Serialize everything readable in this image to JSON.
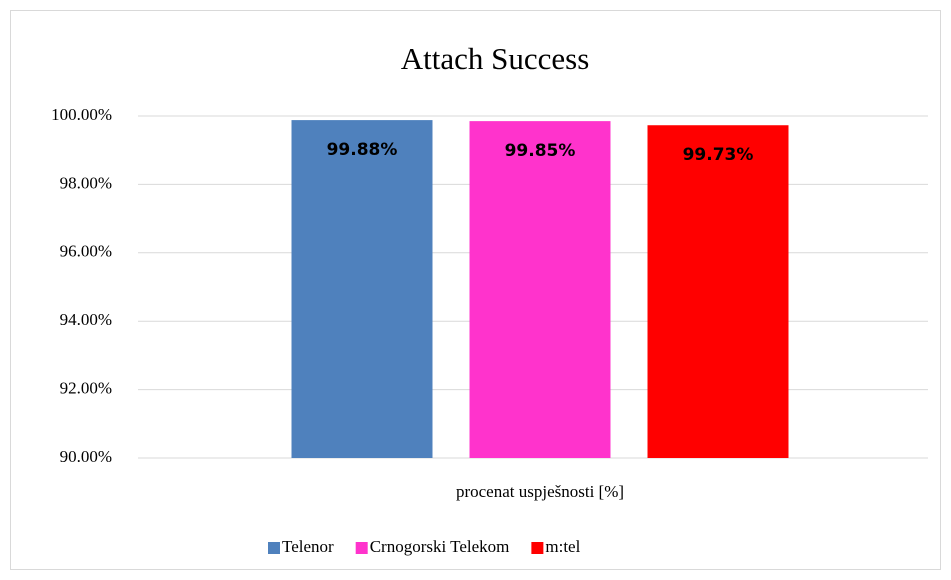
{
  "chart_data": {
    "type": "bar",
    "title": "Attach Success",
    "categories": [
      "procenat uspješnosti [%]"
    ],
    "series": [
      {
        "name": "Telenor",
        "color": "#4f81bd",
        "values": [
          99.88
        ],
        "value_labels": [
          "99.88%"
        ]
      },
      {
        "name": "Crnogorski Telekom",
        "color": "#ff33cc",
        "values": [
          99.85
        ],
        "value_labels": [
          "99.85%"
        ]
      },
      {
        "name": "m:tel",
        "color": "#ff0000",
        "values": [
          99.73
        ],
        "value_labels": [
          "99.73%"
        ]
      }
    ],
    "ylim": [
      90,
      100
    ],
    "yticks": [
      {
        "value": 90,
        "label": "90.00%"
      },
      {
        "value": 92,
        "label": "92.00%"
      },
      {
        "value": 94,
        "label": "94.00%"
      },
      {
        "value": 96,
        "label": "96.00%"
      },
      {
        "value": 98,
        "label": "98.00%"
      },
      {
        "value": 100,
        "label": "100.00%"
      }
    ],
    "grid": true,
    "legend": "bottom"
  }
}
